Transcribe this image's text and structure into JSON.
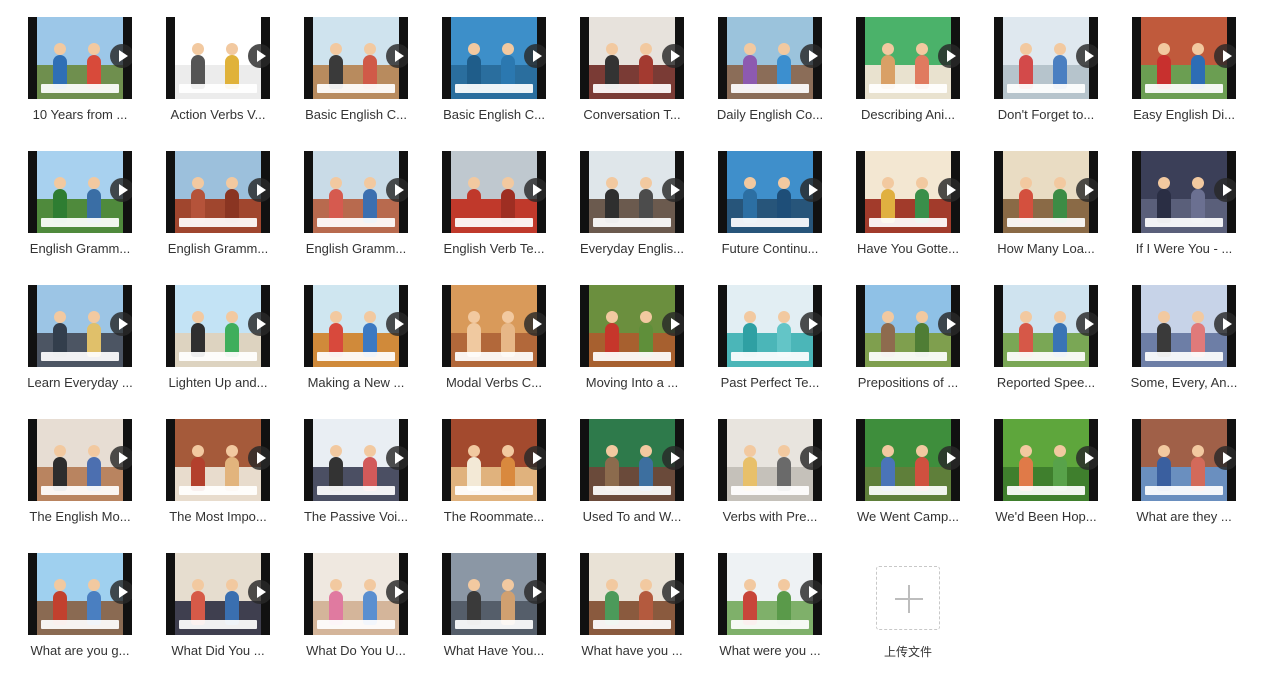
{
  "files": [
    {
      "title": "10 Years from ...",
      "sky": "#9cc7e8",
      "ground": "#6f8f4e",
      "c1": "#2f6fb5",
      "c2": "#d84a3a"
    },
    {
      "title": "Action Verbs V...",
      "sky": "#ffffff",
      "ground": "#ececec",
      "c1": "#555555",
      "c2": "#e0b23a"
    },
    {
      "title": "Basic English C...",
      "sky": "#cfe3ee",
      "ground": "#b88b5e",
      "c1": "#3a3a3a",
      "c2": "#d05a48"
    },
    {
      "title": "Basic English C...",
      "sky": "#3d8fc9",
      "ground": "#2a6e9e",
      "c1": "#1f5d8a",
      "c2": "#2b78b0"
    },
    {
      "title": "Conversation T...",
      "sky": "#e7e2dc",
      "ground": "#7a3b35",
      "c1": "#333333",
      "c2": "#a33a30"
    },
    {
      "title": "Daily English Co...",
      "sky": "#9bc3dc",
      "ground": "#8b6d58",
      "c1": "#8d5ab0",
      "c2": "#3c8fcf"
    },
    {
      "title": "Describing Ani...",
      "sky": "#4bb26a",
      "ground": "#e9e2cf",
      "c1": "#d9a066",
      "c2": "#e07a5f"
    },
    {
      "title": "Don't Forget to...",
      "sky": "#dfe8ef",
      "ground": "#b6c4cc",
      "c1": "#d34a4a",
      "c2": "#4a7fc1"
    },
    {
      "title": "Easy English Di...",
      "sky": "#c05a3c",
      "ground": "#6b9e52",
      "c1": "#c8302e",
      "c2": "#2d6db5"
    },
    {
      "title": "English Gramm...",
      "sky": "#a8d1ef",
      "ground": "#4f8a3c",
      "c1": "#2e7d32",
      "c2": "#3a6ea5"
    },
    {
      "title": "English Gramm...",
      "sky": "#9cc0dc",
      "ground": "#a0462e",
      "c1": "#b5533a",
      "c2": "#8a3522"
    },
    {
      "title": "English Gramm...",
      "sky": "#c9dbe7",
      "ground": "#b86a4e",
      "c1": "#d65a4f",
      "c2": "#3b6fb0"
    },
    {
      "title": "English Verb Te...",
      "sky": "#bfc8cf",
      "ground": "#c0392b",
      "c1": "#c0392b",
      "c2": "#9e2e22"
    },
    {
      "title": "Everyday Englis...",
      "sky": "#dfe6ea",
      "ground": "#6b5a4e",
      "c1": "#2f2f2f",
      "c2": "#4c4c4c"
    },
    {
      "title": "Future Continu...",
      "sky": "#3f8fcb",
      "ground": "#27557a",
      "c1": "#2c6fa3",
      "c2": "#1e4e78"
    },
    {
      "title": "Have You Gotte...",
      "sky": "#f3e7d2",
      "ground": "#a23b2b",
      "c1": "#e0b040",
      "c2": "#3a8f4a"
    },
    {
      "title": "How Many Loa...",
      "sky": "#e9dcc3",
      "ground": "#8a6a46",
      "c1": "#d4503e",
      "c2": "#3c8c45"
    },
    {
      "title": "If I Were You - ...",
      "sky": "#3b3f58",
      "ground": "#5a5f7a",
      "c1": "#2a2e44",
      "c2": "#6b7091"
    },
    {
      "title": "Learn Everyday ...",
      "sky": "#9cc5e5",
      "ground": "#4c5563",
      "c1": "#333e4c",
      "c2": "#e0c06a"
    },
    {
      "title": "Lighten Up and...",
      "sky": "#c3e3f5",
      "ground": "#ddd3c0",
      "c1": "#2f2f2f",
      "c2": "#3fae5c"
    },
    {
      "title": "Making a New ...",
      "sky": "#cfe6f0",
      "ground": "#d08a3a",
      "c1": "#d8493c",
      "c2": "#3c79c2"
    },
    {
      "title": "Modal Verbs C...",
      "sky": "#d99a5a",
      "ground": "#b2683a",
      "c1": "#f0c9a0",
      "c2": "#e7b787"
    },
    {
      "title": "Moving Into a ...",
      "sky": "#6b8f3e",
      "ground": "#a7602f",
      "c1": "#c6362b",
      "c2": "#5f8f3a"
    },
    {
      "title": "Past Perfect Te...",
      "sky": "#e2eef3",
      "ground": "#4bb6b8",
      "c1": "#2fa0a3",
      "c2": "#63c5c7"
    },
    {
      "title": "Prepositions of ...",
      "sky": "#8fc1e6",
      "ground": "#7f9f4e",
      "c1": "#8e6b4e",
      "c2": "#4f7d35"
    },
    {
      "title": "Reported Spee...",
      "sky": "#cfe3ef",
      "ground": "#7aa755",
      "c1": "#d65848",
      "c2": "#3a74b5"
    },
    {
      "title": "Some, Every, An...",
      "sky": "#c7d3e8",
      "ground": "#6d7ea6",
      "c1": "#3a3a3a",
      "c2": "#e07a7a"
    },
    {
      "title": "The English Mo...",
      "sky": "#e7ddd3",
      "ground": "#b98460",
      "c1": "#2d2d2d",
      "c2": "#4c6fb0"
    },
    {
      "title": "The Most Impo...",
      "sky": "#a55a3a",
      "ground": "#e8dccd",
      "c1": "#b3402d",
      "c2": "#e2b47d"
    },
    {
      "title": "The Passive Voi...",
      "sky": "#e9eef3",
      "ground": "#4b4f63",
      "c1": "#333333",
      "c2": "#d25a5a"
    },
    {
      "title": "The Roommate...",
      "sky": "#a34a2e",
      "ground": "#e0b27d",
      "c1": "#f3e9d6",
      "c2": "#d9893e"
    },
    {
      "title": "Used To and W...",
      "sky": "#2e7a4b",
      "ground": "#6a4a3a",
      "c1": "#8c6b4d",
      "c2": "#3d6f9f"
    },
    {
      "title": "Verbs with Pre...",
      "sky": "#e8e4de",
      "ground": "#c5c1ba",
      "c1": "#e8c06a",
      "c2": "#6a6a6a"
    },
    {
      "title": "We Went Camp...",
      "sky": "#3e8e3c",
      "ground": "#5f7f3a",
      "c1": "#4a74b8",
      "c2": "#d0503f"
    },
    {
      "title": "We'd Been Hop...",
      "sky": "#5ea63c",
      "ground": "#3f7f2d",
      "c1": "#e07a48",
      "c2": "#58a24a"
    },
    {
      "title": "What are they ...",
      "sky": "#a06048",
      "ground": "#6a8fbf",
      "c1": "#3a5f9f",
      "c2": "#d36a5a"
    },
    {
      "title": "What are you g...",
      "sky": "#9fd0ef",
      "ground": "#8a6a52",
      "c1": "#c2402e",
      "c2": "#4a7fc1"
    },
    {
      "title": "What Did You ...",
      "sky": "#e6ddcf",
      "ground": "#3f3f4f",
      "c1": "#d65a48",
      "c2": "#3a6fb0"
    },
    {
      "title": "What Do You U...",
      "sky": "#efe8e0",
      "ground": "#d4b59a",
      "c1": "#e07aa0",
      "c2": "#5a8fd0"
    },
    {
      "title": "What Have You...",
      "sky": "#8b97a5",
      "ground": "#555e6a",
      "c1": "#3a3a3a",
      "c2": "#d0a070"
    },
    {
      "title": "What have you ...",
      "sky": "#e9e2d6",
      "ground": "#8a5a3e",
      "c1": "#4c9a5a",
      "c2": "#b45a3e"
    },
    {
      "title": "What were you ...",
      "sky": "#eef2f4",
      "ground": "#7fb06a",
      "c1": "#c8453a",
      "c2": "#5a9a4a"
    }
  ],
  "upload": {
    "label": "上传文件",
    "icon": "plus-icon"
  }
}
